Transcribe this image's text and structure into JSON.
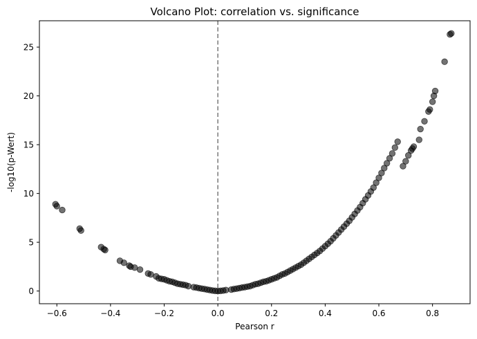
{
  "chart_data": {
    "type": "scatter",
    "title": "Volcano Plot: correlation vs. significance",
    "xlabel": "Pearson r",
    "ylabel": "-log10(p-Wert)",
    "xlim": [
      -0.665,
      0.94
    ],
    "ylim": [
      -1.3,
      27.7
    ],
    "xticks": [
      -0.6,
      -0.4,
      -0.2,
      0.0,
      0.2,
      0.4,
      0.6,
      0.8
    ],
    "xtick_labels": [
      "−0.6",
      "−0.4",
      "−0.2",
      "0.0",
      "0.2",
      "0.4",
      "0.6",
      "0.8"
    ],
    "yticks": [
      0,
      5,
      10,
      15,
      20,
      25
    ],
    "ytick_labels": [
      "0",
      "5",
      "10",
      "15",
      "20",
      "25"
    ],
    "grid": false,
    "reference_line": {
      "x": 0.0,
      "style": "dashed",
      "color": "#808080"
    },
    "marker_color": "#000000",
    "marker_alpha": 0.55,
    "x": [
      -0.605,
      -0.6,
      -0.58,
      -0.515,
      -0.51,
      -0.435,
      -0.425,
      -0.42,
      -0.365,
      -0.35,
      -0.33,
      -0.325,
      -0.31,
      -0.29,
      -0.26,
      -0.25,
      -0.23,
      -0.22,
      -0.21,
      -0.2,
      -0.19,
      -0.18,
      -0.17,
      -0.16,
      -0.15,
      -0.14,
      -0.13,
      -0.12,
      -0.11,
      -0.09,
      -0.08,
      -0.07,
      -0.06,
      -0.05,
      -0.04,
      -0.03,
      -0.02,
      -0.01,
      0.0,
      0.01,
      0.02,
      0.03,
      0.05,
      0.06,
      0.07,
      0.08,
      0.09,
      0.1,
      0.11,
      0.12,
      0.13,
      0.14,
      0.15,
      0.16,
      0.17,
      0.18,
      0.19,
      0.2,
      0.21,
      0.22,
      0.23,
      0.24,
      0.25,
      0.26,
      0.27,
      0.28,
      0.29,
      0.3,
      0.31,
      0.32,
      0.33,
      0.34,
      0.35,
      0.36,
      0.37,
      0.38,
      0.39,
      0.4,
      0.41,
      0.42,
      0.43,
      0.44,
      0.45,
      0.46,
      0.47,
      0.48,
      0.49,
      0.5,
      0.51,
      0.52,
      0.53,
      0.54,
      0.55,
      0.56,
      0.57,
      0.58,
      0.59,
      0.6,
      0.61,
      0.62,
      0.63,
      0.64,
      0.65,
      0.66,
      0.67,
      0.69,
      0.7,
      0.71,
      0.72,
      0.725,
      0.73,
      0.75,
      0.755,
      0.77,
      0.785,
      0.79,
      0.8,
      0.805,
      0.81,
      0.845,
      0.865,
      0.87
    ],
    "y": [
      8.9,
      8.7,
      8.3,
      6.4,
      6.2,
      4.5,
      4.3,
      4.2,
      3.1,
      2.9,
      2.6,
      2.5,
      2.4,
      2.2,
      1.8,
      1.7,
      1.5,
      1.3,
      1.25,
      1.2,
      1.1,
      1.0,
      0.95,
      0.85,
      0.75,
      0.7,
      0.65,
      0.6,
      0.5,
      0.4,
      0.35,
      0.3,
      0.25,
      0.2,
      0.15,
      0.1,
      0.05,
      0.02,
      0.0,
      0.02,
      0.05,
      0.1,
      0.15,
      0.2,
      0.25,
      0.3,
      0.35,
      0.4,
      0.45,
      0.5,
      0.6,
      0.7,
      0.75,
      0.85,
      0.95,
      1.0,
      1.1,
      1.2,
      1.3,
      1.4,
      1.55,
      1.7,
      1.8,
      1.95,
      2.1,
      2.25,
      2.4,
      2.55,
      2.7,
      2.9,
      3.1,
      3.3,
      3.5,
      3.7,
      3.9,
      4.1,
      4.35,
      4.6,
      4.85,
      5.1,
      5.4,
      5.7,
      6.0,
      6.3,
      6.6,
      6.9,
      7.2,
      7.55,
      7.9,
      8.25,
      8.6,
      9.0,
      9.4,
      9.8,
      10.2,
      10.6,
      11.1,
      11.6,
      12.1,
      12.6,
      13.1,
      13.6,
      14.1,
      14.7,
      15.3,
      12.8,
      13.3,
      13.9,
      14.4,
      14.6,
      14.8,
      15.5,
      16.6,
      17.4,
      18.4,
      18.6,
      19.4,
      20.0,
      20.5,
      23.5,
      26.3,
      26.4
    ]
  }
}
